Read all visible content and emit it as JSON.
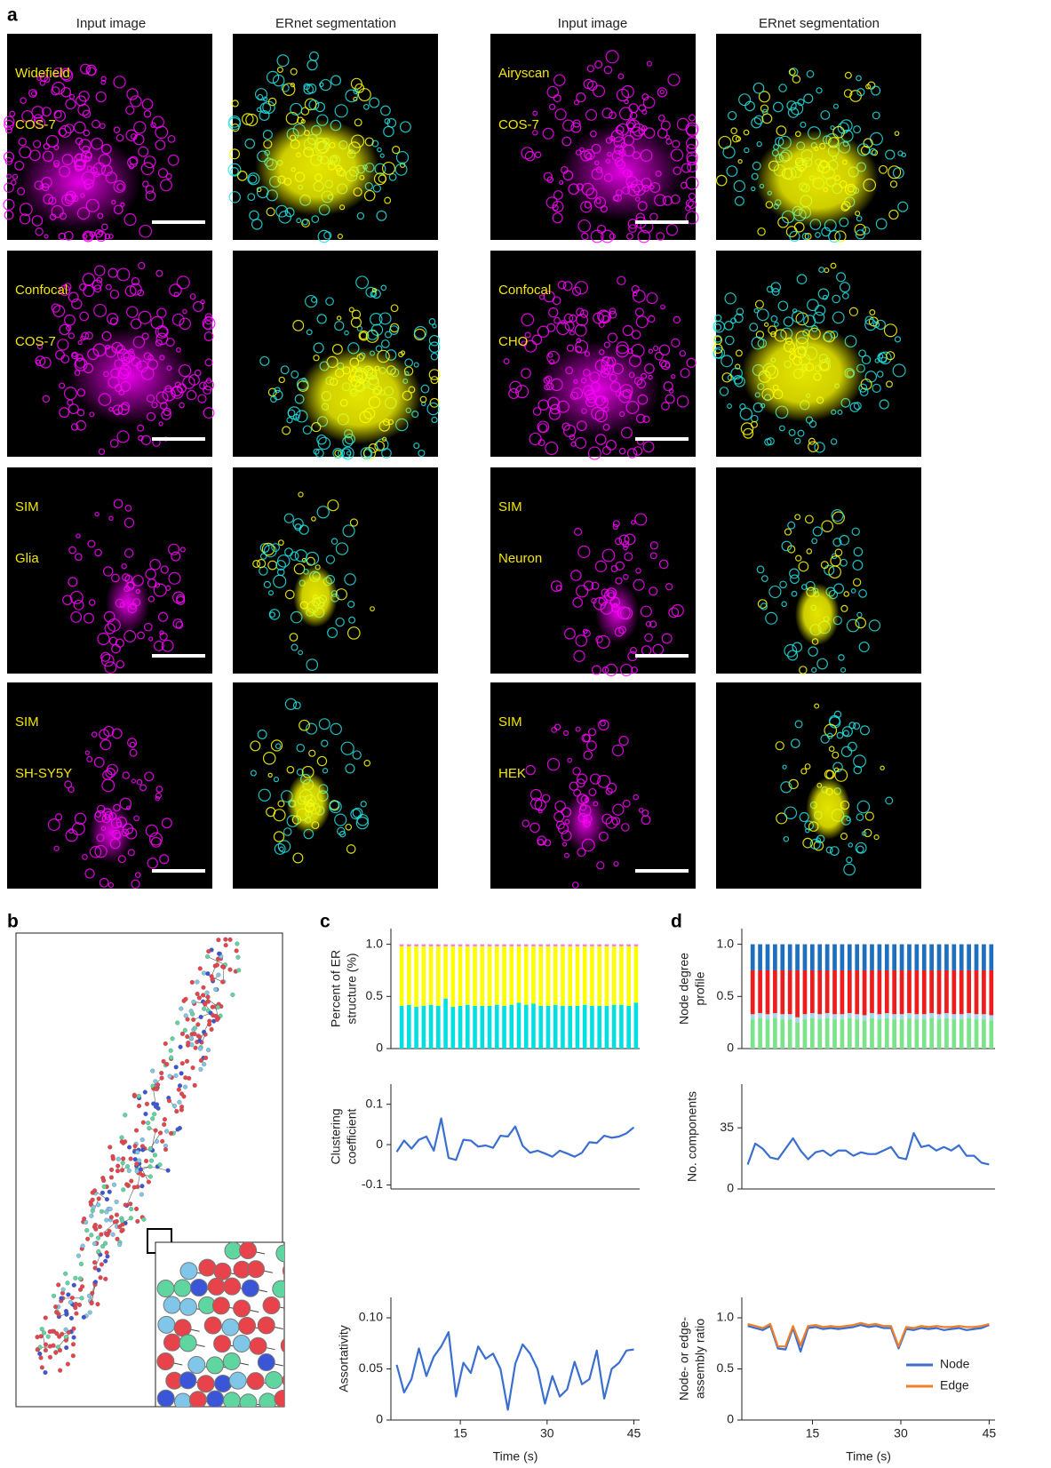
{
  "panel_labels": [
    "a",
    "b",
    "c",
    "d"
  ],
  "image_panels": {
    "headers": [
      "Input image",
      "ERnet segmentation",
      "Input image",
      "ERnet segmentation"
    ],
    "rows": [
      [
        [
          "Widefield",
          "COS-7"
        ],
        [
          "Airyscan",
          "COS-7"
        ]
      ],
      [
        [
          "Confocal",
          "COS-7"
        ],
        [
          "Confocal",
          "CHO"
        ]
      ],
      [
        [
          "SIM",
          "Glia"
        ],
        [
          "SIM",
          "Neuron"
        ]
      ],
      [
        [
          "SIM",
          "SH-SY5Y"
        ],
        [
          "SIM",
          "HEK"
        ]
      ]
    ]
  },
  "chart_data": [
    {
      "type": "bar",
      "stacked": true,
      "ylabel": [
        "Percent of ER",
        "structure (%)"
      ],
      "categories": [
        null,
        null,
        null,
        null,
        null,
        null,
        null,
        null,
        null,
        null,
        null,
        null,
        null,
        null,
        null,
        null,
        null,
        null,
        null,
        null,
        null,
        null,
        null,
        null,
        null,
        null,
        null,
        null,
        null,
        null,
        null,
        null,
        null
      ],
      "ylim": [
        0,
        1.15
      ],
      "yticks": [
        0,
        0.5,
        {
          "value": 1.0,
          "label": "1.0"
        }
      ],
      "series": [
        {
          "color": "#00e0e0",
          "values": [
            0.41,
            0.42,
            0.4,
            0.41,
            0.42,
            0.41,
            0.48,
            0.4,
            0.41,
            0.42,
            0.41,
            0.41,
            0.41,
            0.42,
            0.41,
            0.42,
            0.44,
            0.42,
            0.43,
            0.41,
            0.41,
            0.42,
            0.41,
            0.41,
            0.41,
            0.42,
            0.41,
            0.41,
            0.41,
            0.42,
            0.42,
            0.41,
            0.44
          ]
        },
        {
          "color": "#ffff00",
          "values": [
            0.57,
            0.56,
            0.58,
            0.57,
            0.56,
            0.57,
            0.5,
            0.58,
            0.57,
            0.56,
            0.57,
            0.57,
            0.57,
            0.56,
            0.57,
            0.56,
            0.54,
            0.56,
            0.55,
            0.57,
            0.57,
            0.56,
            0.57,
            0.57,
            0.57,
            0.56,
            0.57,
            0.57,
            0.57,
            0.56,
            0.56,
            0.57,
            0.54
          ]
        },
        {
          "color": "#ee82ee",
          "values": [
            0.02,
            0.02,
            0.02,
            0.02,
            0.02,
            0.02,
            0.02,
            0.02,
            0.02,
            0.02,
            0.02,
            0.02,
            0.02,
            0.02,
            0.02,
            0.02,
            0.02,
            0.02,
            0.02,
            0.02,
            0.02,
            0.02,
            0.02,
            0.02,
            0.02,
            0.02,
            0.02,
            0.02,
            0.02,
            0.02,
            0.02,
            0.02,
            0.02
          ]
        }
      ]
    },
    {
      "type": "line",
      "ylabel": [
        "Clustering",
        "coefficient"
      ],
      "x": [
        4,
        5.28,
        6.56,
        7.84,
        9.13,
        10.41,
        11.69,
        12.97,
        14.25,
        15.53,
        16.81,
        18.09,
        19.38,
        20.66,
        21.94,
        23.22,
        24.5,
        25.78,
        27.06,
        28.34,
        29.63,
        30.91,
        32.19,
        33.47,
        34.75,
        36.03,
        37.31,
        38.59,
        39.88,
        41.16,
        42.44,
        43.72,
        45
      ],
      "xlim": [
        3,
        46
      ],
      "ylim": [
        -0.11,
        0.15
      ],
      "yticks": [
        -0.1,
        0,
        0.1
      ],
      "series": [
        {
          "color": "#3a6fd0",
          "values": [
            -0.018,
            0.01,
            -0.01,
            0.012,
            0.02,
            -0.015,
            0.065,
            -0.033,
            -0.038,
            0.012,
            0.01,
            -0.005,
            -0.002,
            -0.008,
            0.022,
            0.02,
            0.045,
            -0.003,
            -0.02,
            -0.015,
            -0.022,
            -0.03,
            -0.015,
            -0.022,
            -0.03,
            -0.02,
            0.006,
            0.004,
            0.022,
            0.017,
            0.02,
            0.028,
            0.043
          ]
        }
      ]
    },
    {
      "type": "line",
      "ylabel": [
        "Assortativity"
      ],
      "xlabel": "Time (s)",
      "x": [
        4,
        5.28,
        6.56,
        7.84,
        9.13,
        10.41,
        11.69,
        12.97,
        14.25,
        15.53,
        16.81,
        18.09,
        19.38,
        20.66,
        21.94,
        23.22,
        24.5,
        25.78,
        27.06,
        28.34,
        29.63,
        30.91,
        32.19,
        33.47,
        34.75,
        36.03,
        37.31,
        38.59,
        39.88,
        41.16,
        42.44,
        43.72,
        45
      ],
      "xlim": [
        3,
        46
      ],
      "xticks": [
        15,
        30,
        45
      ],
      "ylim": [
        0,
        0.12
      ],
      "yticks": [
        0,
        0.05,
        {
          "value": 0.1,
          "label": "0.10"
        }
      ],
      "series": [
        {
          "color": "#3a6fd0",
          "values": [
            0.054,
            0.027,
            0.04,
            0.07,
            0.043,
            0.062,
            0.072,
            0.086,
            0.023,
            0.056,
            0.046,
            0.072,
            0.06,
            0.065,
            0.05,
            0.01,
            0.055,
            0.074,
            0.065,
            0.05,
            0.016,
            0.043,
            0.023,
            0.03,
            0.057,
            0.035,
            0.04,
            0.068,
            0.021,
            0.05,
            0.056,
            0.068,
            0.069
          ]
        }
      ]
    },
    {
      "type": "bar",
      "stacked": true,
      "ylabel": [
        "Node degree",
        "profile"
      ],
      "categories": [
        null,
        null,
        null,
        null,
        null,
        null,
        null,
        null,
        null,
        null,
        null,
        null,
        null,
        null,
        null,
        null,
        null,
        null,
        null,
        null,
        null,
        null,
        null,
        null,
        null,
        null,
        null,
        null,
        null,
        null,
        null,
        null,
        null
      ],
      "ylim": [
        0,
        1.15
      ],
      "yticks": [
        0,
        0.5,
        {
          "value": 1.0,
          "label": "1.0"
        }
      ],
      "series": [
        {
          "color": "#7be38a",
          "values": [
            0.28,
            0.29,
            0.28,
            0.29,
            0.28,
            0.28,
            0.25,
            0.28,
            0.29,
            0.28,
            0.29,
            0.28,
            0.28,
            0.29,
            0.28,
            0.27,
            0.29,
            0.28,
            0.29,
            0.28,
            0.28,
            0.29,
            0.28,
            0.28,
            0.29,
            0.28,
            0.29,
            0.28,
            0.28,
            0.29,
            0.28,
            0.28,
            0.27
          ]
        },
        {
          "color": "#a6d8ea",
          "values": [
            0.05,
            0.05,
            0.05,
            0.05,
            0.05,
            0.05,
            0.05,
            0.05,
            0.05,
            0.05,
            0.05,
            0.05,
            0.05,
            0.05,
            0.05,
            0.05,
            0.05,
            0.05,
            0.05,
            0.05,
            0.05,
            0.05,
            0.05,
            0.05,
            0.05,
            0.05,
            0.05,
            0.05,
            0.05,
            0.05,
            0.05,
            0.05,
            0.05
          ]
        },
        {
          "color": "#ee1c1c",
          "values": [
            0.42,
            0.41,
            0.42,
            0.41,
            0.42,
            0.42,
            0.45,
            0.42,
            0.41,
            0.42,
            0.41,
            0.42,
            0.42,
            0.41,
            0.42,
            0.43,
            0.41,
            0.42,
            0.41,
            0.42,
            0.42,
            0.41,
            0.42,
            0.42,
            0.41,
            0.42,
            0.41,
            0.42,
            0.42,
            0.41,
            0.42,
            0.42,
            0.43
          ]
        },
        {
          "color": "#1f6fbf",
          "values": [
            0.25,
            0.25,
            0.25,
            0.25,
            0.25,
            0.25,
            0.25,
            0.25,
            0.25,
            0.25,
            0.25,
            0.25,
            0.25,
            0.25,
            0.25,
            0.25,
            0.25,
            0.25,
            0.25,
            0.25,
            0.25,
            0.25,
            0.25,
            0.25,
            0.25,
            0.25,
            0.25,
            0.25,
            0.25,
            0.25,
            0.25,
            0.25,
            0.25
          ]
        }
      ]
    },
    {
      "type": "line",
      "ylabel": [
        "No. components"
      ],
      "x": [
        4,
        5.28,
        6.56,
        7.84,
        9.13,
        10.41,
        11.69,
        12.97,
        14.25,
        15.53,
        16.81,
        18.09,
        19.38,
        20.66,
        21.94,
        23.22,
        24.5,
        25.78,
        27.06,
        28.34,
        29.63,
        30.91,
        32.19,
        33.47,
        34.75,
        36.03,
        37.31,
        38.59,
        39.88,
        41.16,
        42.44,
        43.72,
        45
      ],
      "xlim": [
        3,
        46
      ],
      "ylim": [
        0,
        60
      ],
      "yticks": [
        0,
        35
      ],
      "series": [
        {
          "color": "#3a6fd0",
          "values": [
            14,
            26,
            23,
            18,
            17,
            23,
            29,
            22,
            17,
            21,
            22,
            19,
            22,
            22,
            19,
            21,
            20,
            20,
            22,
            24,
            18,
            17,
            32,
            24,
            25,
            22,
            24,
            22,
            25,
            19,
            19,
            15,
            14
          ]
        }
      ]
    },
    {
      "type": "line",
      "ylabel": [
        "Node- or edge-",
        "assembly ratio"
      ],
      "xlabel": "Time (s)",
      "legend": "lower right",
      "x": [
        4,
        5.28,
        6.56,
        7.84,
        9.13,
        10.41,
        11.69,
        12.97,
        14.25,
        15.53,
        16.81,
        18.09,
        19.38,
        20.66,
        21.94,
        23.22,
        24.5,
        25.78,
        27.06,
        28.34,
        29.63,
        30.91,
        32.19,
        33.47,
        34.75,
        36.03,
        37.31,
        38.59,
        39.88,
        41.16,
        42.44,
        43.72,
        45
      ],
      "xlim": [
        3,
        46
      ],
      "xticks": [
        15,
        30,
        45
      ],
      "ylim": [
        0,
        1.2
      ],
      "yticks": [
        0,
        0.5,
        {
          "value": 1.0,
          "label": "1.0"
        }
      ],
      "series": [
        {
          "name": "Node",
          "color": "#3a6fd0",
          "values": [
            0.92,
            0.9,
            0.88,
            0.92,
            0.7,
            0.69,
            0.9,
            0.67,
            0.9,
            0.91,
            0.89,
            0.9,
            0.89,
            0.9,
            0.91,
            0.93,
            0.91,
            0.92,
            0.9,
            0.9,
            0.7,
            0.89,
            0.88,
            0.9,
            0.89,
            0.9,
            0.88,
            0.89,
            0.9,
            0.88,
            0.89,
            0.9,
            0.93
          ]
        },
        {
          "name": "Edge",
          "color": "#f07f2a",
          "values": [
            0.94,
            0.92,
            0.9,
            0.94,
            0.72,
            0.72,
            0.92,
            0.73,
            0.92,
            0.93,
            0.91,
            0.92,
            0.91,
            0.92,
            0.93,
            0.95,
            0.93,
            0.94,
            0.92,
            0.92,
            0.72,
            0.91,
            0.9,
            0.92,
            0.91,
            0.92,
            0.91,
            0.91,
            0.92,
            0.91,
            0.91,
            0.92,
            0.94
          ]
        }
      ]
    }
  ]
}
